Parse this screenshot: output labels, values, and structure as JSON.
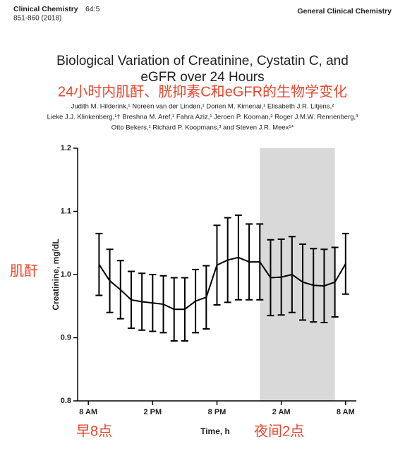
{
  "header": {
    "journal": "Clinical Chemistry",
    "volume": "64:5",
    "pages": "851-860 (2018)",
    "section": "General Clinical Chemistry"
  },
  "title": [
    "Biological Variation of Creatinine, Cystatin C, and",
    "eGFR over 24 Hours"
  ],
  "authors": [
    "Judith M. Hilderink,¹ Noreen van der Linden,¹ Dorien M. Kimenai,¹ Elisabeth J.R. Litjens,²",
    "Lieke J.J. Klinkenberg,¹† Breshna M. Aref,¹ Fahra Aziz,¹ Jeroen P. Kooman,² Roger J.M.W. Rennenberg,³",
    "Otto Bekers,¹ Richard P. Koopmans,³ and Steven J.R. Meex¹*"
  ],
  "annotations": {
    "title_cn": "24小时内肌酐、胱抑素C和eGFR的生物学变化",
    "ylabel_cn": "肌酐",
    "x_left_cn": "早8点",
    "x_right_cn": "夜间2点",
    "color": "#e8452c"
  },
  "chart_data": {
    "type": "line",
    "ylabel": "Creatinine, mg/dL",
    "xlabel": "Time, h",
    "x": [
      1,
      2,
      3,
      4,
      5,
      6,
      7,
      8,
      9,
      10,
      11,
      12,
      13,
      14,
      15,
      16,
      17,
      18,
      19,
      20,
      21,
      22,
      23,
      24
    ],
    "series": [
      {
        "color": "#000000",
        "values": [
          1.016,
          0.99,
          0.976,
          0.96,
          0.957,
          0.955,
          0.953,
          0.945,
          0.945,
          0.958,
          0.964,
          1.015,
          1.023,
          1.027,
          1.02,
          1.02,
          0.995,
          0.996,
          1.0,
          0.988,
          0.983,
          0.982,
          0.988,
          1.017
        ],
        "errors": [
          0.049,
          0.05,
          0.046,
          0.045,
          0.045,
          0.045,
          0.045,
          0.05,
          0.05,
          0.05,
          0.05,
          0.063,
          0.067,
          0.067,
          0.06,
          0.06,
          0.06,
          0.06,
          0.06,
          0.06,
          0.058,
          0.058,
          0.055,
          0.048
        ]
      }
    ],
    "xlim": [
      -1,
      25
    ],
    "ylim": [
      0.8,
      1.2
    ],
    "xticks": [
      {
        "value": 0,
        "label": "8 AM"
      },
      {
        "value": 6,
        "label": "2 PM"
      },
      {
        "value": 12,
        "label": "8 PM"
      },
      {
        "value": 18,
        "label": "2 AM"
      },
      {
        "value": 24,
        "label": "8 AM"
      }
    ],
    "yticks": [
      0.8,
      0.9,
      {
        "value": 1,
        "label": "1.0"
      },
      1.1,
      1.2
    ],
    "shaded_region": [
      16,
      23
    ],
    "shade_color": "#d9d9d9"
  }
}
